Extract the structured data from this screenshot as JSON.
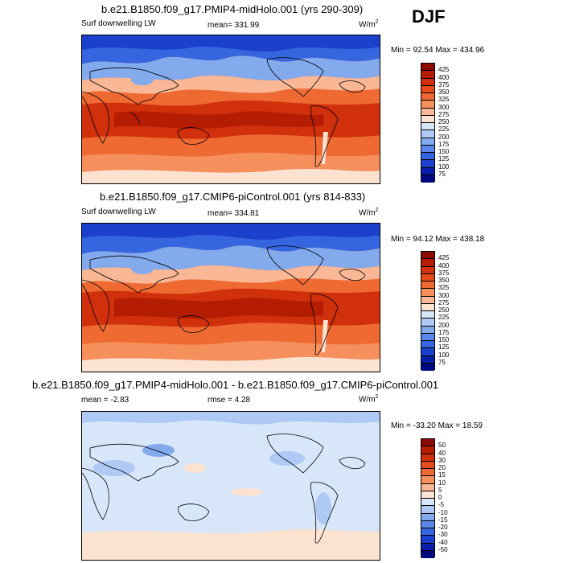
{
  "season": "DJF",
  "panels": [
    {
      "title": "b.e21.B1850.f09_g17.PMIP4-midHolo.001 (yrs 290-309)",
      "variable": "Surf downwelling LW",
      "stat": "mean= 331.99",
      "units_base": "W/m",
      "units_exp": "2",
      "minmax": "Min =  92.54 Max = 434.96",
      "levels": [
        "425",
        "400",
        "375",
        "350",
        "325",
        "300",
        "275",
        "250",
        "225",
        "200",
        "175",
        "150",
        "125",
        "100",
        "75"
      ],
      "colors": [
        "#8b0a00",
        "#b51d02",
        "#d0300b",
        "#e44a1a",
        "#ef6a33",
        "#f58f5c",
        "#f9b795",
        "#fbe2d1",
        "#d8e6fa",
        "#adc9f4",
        "#84aaee",
        "#5b88e8",
        "#3666df",
        "#1a40cc",
        "#0c1ea7",
        "#000a80"
      ],
      "kind": "abs"
    },
    {
      "title": "b.e21.B1850.f09_g17.CMIP6-piControl.001 (yrs 814-833)",
      "variable": "Surf downwelling LW",
      "stat": "mean= 334.81",
      "units_base": "W/m",
      "units_exp": "2",
      "minmax": "Min =  94.12 Max = 438.18",
      "levels": [
        "425",
        "400",
        "375",
        "350",
        "325",
        "300",
        "275",
        "250",
        "225",
        "200",
        "175",
        "150",
        "125",
        "100",
        "75"
      ],
      "colors": [
        "#8b0a00",
        "#b51d02",
        "#d0300b",
        "#e44a1a",
        "#ef6a33",
        "#f58f5c",
        "#f9b795",
        "#fbe2d1",
        "#d8e6fa",
        "#adc9f4",
        "#84aaee",
        "#5b88e8",
        "#3666df",
        "#1a40cc",
        "#0c1ea7",
        "#000a80"
      ],
      "kind": "abs"
    },
    {
      "title": "b.e21.B1850.f09_g17.PMIP4-midHolo.001 - b.e21.B1850.f09_g17.CMIP6-piControl.001",
      "variable": "",
      "stat": "mean =  -2.83",
      "stat2": "rmse =   4.28",
      "units_base": "W/m",
      "units_exp": "2",
      "minmax": "Min = -33.20 Max =  18.59",
      "levels": [
        "50",
        "40",
        "30",
        "20",
        "15",
        "10",
        "5",
        "0",
        "-5",
        "-10",
        "-15",
        "-20",
        "-30",
        "-40",
        "-50"
      ],
      "colors": [
        "#8b0a00",
        "#b51d02",
        "#d0300b",
        "#e44a1a",
        "#ef6a33",
        "#f58f5c",
        "#f9b795",
        "#fbe2d1",
        "#d8e6fa",
        "#adc9f4",
        "#84aaee",
        "#5b88e8",
        "#3666df",
        "#1a40cc",
        "#0c1ea7",
        "#000a80"
      ],
      "kind": "diff"
    }
  ]
}
